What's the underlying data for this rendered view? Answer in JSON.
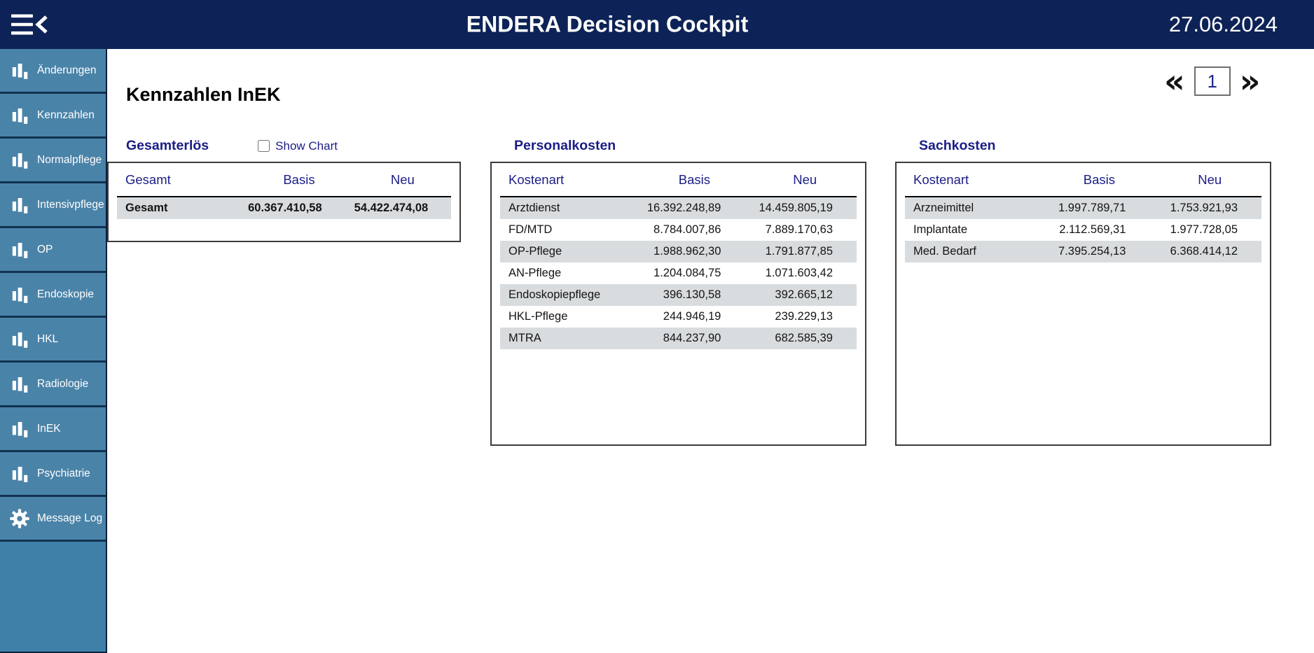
{
  "header": {
    "title": "ENDERA Decision Cockpit",
    "date": "27.06.2024"
  },
  "sidebar": {
    "items": [
      {
        "id": "aenderungen",
        "label": "Änderungen",
        "icon": "bar-chart-icon"
      },
      {
        "id": "kennzahlen",
        "label": "Kennzahlen",
        "icon": "bar-chart-icon"
      },
      {
        "id": "normalpflege",
        "label": "Normalpflege",
        "icon": "bar-chart-icon"
      },
      {
        "id": "intensivpflege",
        "label": "Intensivpflege",
        "icon": "bar-chart-icon"
      },
      {
        "id": "op",
        "label": "OP",
        "icon": "bar-chart-icon"
      },
      {
        "id": "endoskopie",
        "label": "Endoskopie",
        "icon": "bar-chart-icon"
      },
      {
        "id": "hkl",
        "label": "HKL",
        "icon": "bar-chart-icon"
      },
      {
        "id": "radiologie",
        "label": "Radiologie",
        "icon": "bar-chart-icon"
      },
      {
        "id": "inek",
        "label": "InEK",
        "icon": "bar-chart-icon"
      },
      {
        "id": "psychiatrie",
        "label": "Psychiatrie",
        "icon": "bar-chart-icon"
      },
      {
        "id": "message-log",
        "label": "Message Log",
        "icon": "gear-icon"
      }
    ]
  },
  "main": {
    "page_title": "Kennzahlen InEK",
    "pagination": {
      "prev_label": "«",
      "page_value": "1",
      "next_label": "»"
    },
    "sections": [
      {
        "title": "Gesamterlös",
        "show_chart_label": "Show Chart",
        "show_chart_checked": false,
        "columns": [
          "Gesamt",
          "Basis",
          "Neu"
        ],
        "rows": [
          {
            "label": "Gesamt",
            "basis": "60.367.410,58",
            "neu": "54.422.474,08",
            "bold": true
          }
        ]
      },
      {
        "title": "Personalkosten",
        "columns": [
          "Kostenart",
          "Basis",
          "Neu"
        ],
        "rows": [
          {
            "label": "Arztdienst",
            "basis": "16.392.248,89",
            "neu": "14.459.805,19"
          },
          {
            "label": "FD/MTD",
            "basis": "8.784.007,86",
            "neu": "7.889.170,63"
          },
          {
            "label": "OP-Pflege",
            "basis": "1.988.962,30",
            "neu": "1.791.877,85"
          },
          {
            "label": "AN-Pflege",
            "basis": "1.204.084,75",
            "neu": "1.071.603,42"
          },
          {
            "label": "Endoskopiepflege",
            "basis": "396.130,58",
            "neu": "392.665,12"
          },
          {
            "label": "HKL-Pflege",
            "basis": "244.946,19",
            "neu": "239.229,13"
          },
          {
            "label": "MTRA",
            "basis": "844.237,90",
            "neu": "682.585,39"
          }
        ]
      },
      {
        "title": "Sachkosten",
        "columns": [
          "Kostenart",
          "Basis",
          "Neu"
        ],
        "rows": [
          {
            "label": "Arzneimittel",
            "basis": "1.997.789,71",
            "neu": "1.753.921,93"
          },
          {
            "label": "Implantate",
            "basis": "2.112.569,31",
            "neu": "1.977.728,05"
          },
          {
            "label": "Med. Bedarf",
            "basis": "7.395.254,13",
            "neu": "6.368.414,12"
          }
        ]
      }
    ]
  },
  "colors": {
    "header_navy": "#0d2357",
    "sidebar_blue": "#4a83a8",
    "sidebar_base": "#3e80a8",
    "heading_navy": "#1b1d86",
    "row_gray": "#d8dcde",
    "table_border": "#3c3c3c"
  }
}
